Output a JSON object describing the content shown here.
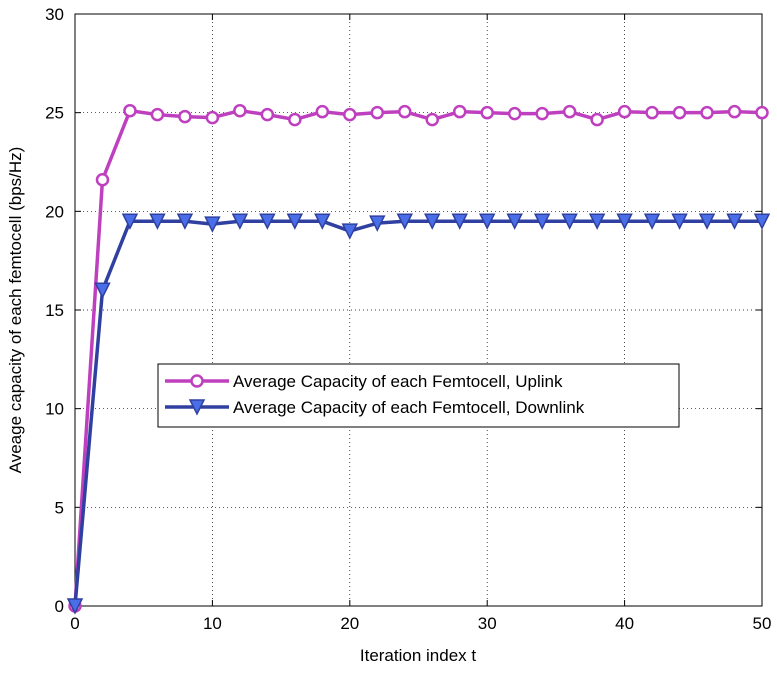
{
  "chart_data": {
    "type": "line",
    "title": "",
    "xlabel": "Iteration index t",
    "ylabel": "Aveage capacity of each femtocell (bps/Hz)",
    "xlim": [
      0,
      50
    ],
    "ylim": [
      0,
      30
    ],
    "xticks": [
      0,
      10,
      20,
      30,
      40,
      50
    ],
    "yticks": [
      0,
      5,
      10,
      15,
      20,
      25,
      30
    ],
    "grid": true,
    "legend_position": "center-right",
    "x": [
      0,
      2,
      4,
      6,
      8,
      10,
      12,
      14,
      16,
      18,
      20,
      22,
      24,
      26,
      28,
      30,
      32,
      34,
      36,
      38,
      40,
      42,
      44,
      46,
      48,
      50
    ],
    "series": [
      {
        "name": "Average Capacity of each Femtocell, Uplink",
        "color": "#bf40bf",
        "marker": "circle",
        "values": [
          0,
          21.6,
          25.1,
          24.9,
          24.8,
          24.75,
          25.1,
          24.9,
          24.65,
          25.05,
          24.9,
          25.0,
          25.05,
          24.65,
          25.05,
          25.0,
          24.95,
          24.95,
          25.05,
          24.65,
          25.05,
          25.0,
          25.0,
          25.0,
          25.05,
          25.0
        ]
      },
      {
        "name": "Average Capacity of each Femtocell, Downlink",
        "color": "#3040a0",
        "marker": "triangle-down",
        "values": [
          0,
          16.0,
          19.5,
          19.5,
          19.5,
          19.35,
          19.5,
          19.5,
          19.5,
          19.5,
          19.0,
          19.4,
          19.5,
          19.5,
          19.5,
          19.5,
          19.5,
          19.5,
          19.5,
          19.5,
          19.5,
          19.5,
          19.5,
          19.5,
          19.5,
          19.5
        ]
      }
    ]
  }
}
